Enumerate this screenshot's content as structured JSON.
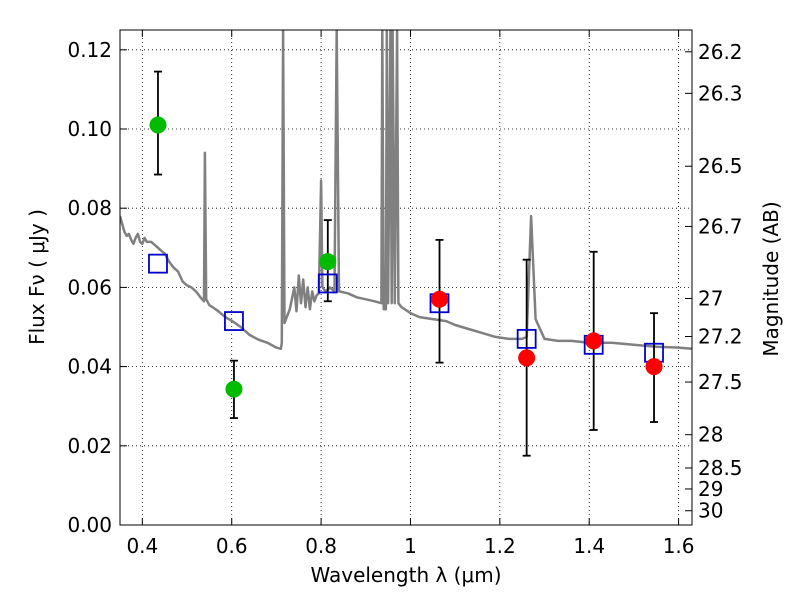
{
  "chart_data": {
    "type": "scatter",
    "xlabel": "Wavelength  λ (μm)",
    "ylabel": "Flux  Fν  ( μJy )",
    "ylabel_right": "Magnitude (AB)",
    "xlim": [
      0.35,
      1.63
    ],
    "ylim": [
      0.0,
      0.125
    ],
    "grid": true,
    "x_ticks": [
      0.4,
      0.6,
      0.8,
      1.0,
      1.2,
      1.4,
      1.6
    ],
    "x_tick_labels": [
      "0.4",
      "0.6",
      "0.8",
      "1",
      "1.2",
      "1.4",
      "1.6"
    ],
    "y_ticks": [
      0.0,
      0.02,
      0.04,
      0.06,
      0.08,
      0.1,
      0.12
    ],
    "y_tick_labels": [
      "0.00",
      "0.02",
      "0.04",
      "0.06",
      "0.08",
      "0.10",
      "0.12"
    ],
    "right_ticks": [
      {
        "label": "26.2",
        "flux": 0.1195
      },
      {
        "label": "26.3",
        "flux": 0.109
      },
      {
        "label": "26.5",
        "flux": 0.0906
      },
      {
        "label": "26.7",
        "flux": 0.0754
      },
      {
        "label": "27",
        "flux": 0.0572
      },
      {
        "label": "27.2",
        "flux": 0.0476
      },
      {
        "label": "27.5",
        "flux": 0.0361
      },
      {
        "label": "28",
        "flux": 0.0228
      },
      {
        "label": "28.5",
        "flux": 0.0144
      },
      {
        "label": "29",
        "flux": 0.0091
      },
      {
        "label": "30",
        "flux": 0.0036
      }
    ],
    "series": [
      {
        "kind": "model-spectrum",
        "color": "#808080",
        "points": [
          [
            0.35,
            0.078
          ],
          [
            0.355,
            0.076
          ],
          [
            0.36,
            0.074
          ],
          [
            0.365,
            0.073
          ],
          [
            0.37,
            0.0735
          ],
          [
            0.375,
            0.072
          ],
          [
            0.38,
            0.071
          ],
          [
            0.385,
            0.0725
          ],
          [
            0.39,
            0.0735
          ],
          [
            0.395,
            0.0715
          ],
          [
            0.4,
            0.071
          ],
          [
            0.405,
            0.0725
          ],
          [
            0.41,
            0.0715
          ],
          [
            0.42,
            0.0715
          ],
          [
            0.43,
            0.0705
          ],
          [
            0.44,
            0.0695
          ],
          [
            0.45,
            0.0685
          ],
          [
            0.46,
            0.0665
          ],
          [
            0.47,
            0.065
          ],
          [
            0.48,
            0.064
          ],
          [
            0.49,
            0.0615
          ],
          [
            0.5,
            0.0605
          ],
          [
            0.51,
            0.06
          ],
          [
            0.52,
            0.059
          ],
          [
            0.53,
            0.0575
          ],
          [
            0.538,
            0.0565
          ],
          [
            0.54,
            0.094
          ],
          [
            0.543,
            0.057
          ],
          [
            0.55,
            0.0555
          ],
          [
            0.56,
            0.0548
          ],
          [
            0.57,
            0.054
          ],
          [
            0.58,
            0.053
          ],
          [
            0.59,
            0.0522
          ],
          [
            0.6,
            0.0516
          ],
          [
            0.62,
            0.05
          ],
          [
            0.64,
            0.048
          ],
          [
            0.66,
            0.0468
          ],
          [
            0.68,
            0.046
          ],
          [
            0.7,
            0.0448
          ],
          [
            0.71,
            0.0445
          ],
          [
            0.712,
            0.046
          ],
          [
            0.715,
            0.125
          ],
          [
            0.718,
            0.051
          ],
          [
            0.73,
            0.0545
          ],
          [
            0.74,
            0.06
          ],
          [
            0.745,
            0.054
          ],
          [
            0.75,
            0.063
          ],
          [
            0.755,
            0.056
          ],
          [
            0.76,
            0.062
          ],
          [
            0.765,
            0.055
          ],
          [
            0.77,
            0.06
          ],
          [
            0.775,
            0.0545
          ],
          [
            0.78,
            0.059
          ],
          [
            0.785,
            0.0565
          ],
          [
            0.79,
            0.058
          ],
          [
            0.795,
            0.0585
          ],
          [
            0.8,
            0.087
          ],
          [
            0.803,
            0.06
          ],
          [
            0.81,
            0.059
          ],
          [
            0.82,
            0.06
          ],
          [
            0.83,
            0.059
          ],
          [
            0.835,
            0.125
          ],
          [
            0.84,
            0.059
          ],
          [
            0.86,
            0.0585
          ],
          [
            0.88,
            0.0575
          ],
          [
            0.9,
            0.057
          ],
          [
            0.92,
            0.0565
          ],
          [
            0.935,
            0.056
          ],
          [
            0.937,
            0.125
          ],
          [
            0.94,
            0.0545
          ],
          [
            0.945,
            0.0545
          ],
          [
            0.947,
            0.125
          ],
          [
            0.95,
            0.056
          ],
          [
            0.955,
            0.125
          ],
          [
            0.958,
            0.056
          ],
          [
            0.96,
            0.125
          ],
          [
            0.965,
            0.056
          ],
          [
            0.97,
            0.125
          ],
          [
            0.973,
            0.056
          ],
          [
            0.98,
            0.055
          ],
          [
            1.0,
            0.0535
          ],
          [
            1.02,
            0.0525
          ],
          [
            1.05,
            0.052
          ],
          [
            1.08,
            0.0515
          ],
          [
            1.1,
            0.0505
          ],
          [
            1.13,
            0.0495
          ],
          [
            1.16,
            0.0485
          ],
          [
            1.19,
            0.0475
          ],
          [
            1.22,
            0.047
          ],
          [
            1.25,
            0.047
          ],
          [
            1.26,
            0.0475
          ],
          [
            1.27,
            0.078
          ],
          [
            1.28,
            0.052
          ],
          [
            1.3,
            0.047
          ],
          [
            1.33,
            0.0465
          ],
          [
            1.36,
            0.0465
          ],
          [
            1.4,
            0.046
          ],
          [
            1.45,
            0.046
          ],
          [
            1.5,
            0.0455
          ],
          [
            1.55,
            0.045
          ],
          [
            1.6,
            0.0448
          ],
          [
            1.63,
            0.0445
          ]
        ]
      },
      {
        "kind": "observed-points",
        "color": "#00bb00",
        "points": [
          {
            "x": 0.435,
            "y": 0.101,
            "err_low": 0.0885,
            "err_high": 0.1145
          },
          {
            "x": 0.605,
            "y": 0.0343,
            "err_low": 0.027,
            "err_high": 0.0415
          },
          {
            "x": 0.815,
            "y": 0.0665,
            "err_low": 0.0565,
            "err_high": 0.077
          }
        ]
      },
      {
        "kind": "observed-points",
        "color": "#ff0000",
        "points": [
          {
            "x": 1.065,
            "y": 0.057,
            "err_low": 0.041,
            "err_high": 0.072
          },
          {
            "x": 1.26,
            "y": 0.0422,
            "err_low": 0.0175,
            "err_high": 0.067
          },
          {
            "x": 1.41,
            "y": 0.0465,
            "err_low": 0.024,
            "err_high": 0.069
          },
          {
            "x": 1.545,
            "y": 0.04,
            "err_low": 0.026,
            "err_high": 0.0535
          }
        ]
      },
      {
        "kind": "model-points",
        "color": "#0000cc",
        "points": [
          {
            "x": 0.435,
            "y": 0.066
          },
          {
            "x": 0.605,
            "y": 0.0515
          },
          {
            "x": 0.815,
            "y": 0.061
          },
          {
            "x": 1.065,
            "y": 0.056
          },
          {
            "x": 1.26,
            "y": 0.047
          },
          {
            "x": 1.41,
            "y": 0.0455
          },
          {
            "x": 1.545,
            "y": 0.0435
          }
        ]
      }
    ]
  }
}
